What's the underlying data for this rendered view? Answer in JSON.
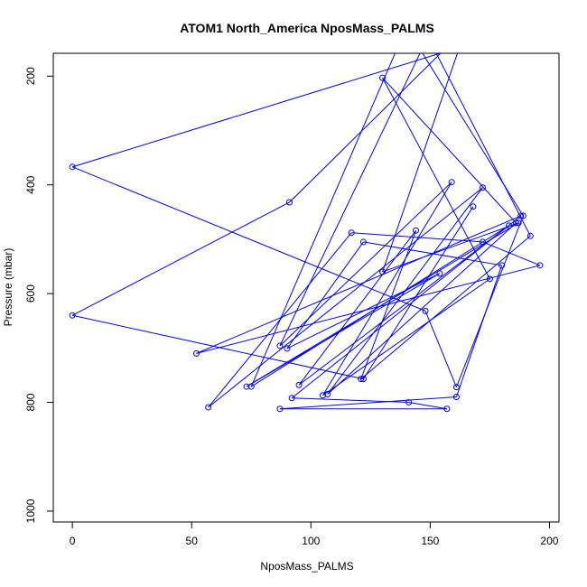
{
  "chart_data": {
    "type": "line",
    "title": "ATOM1 North_America NposMass_PALMS",
    "xlabel": "NposMass_PALMS",
    "ylabel": "Pressure (mbar)",
    "xlim": [
      -8,
      204
    ],
    "ylim": [
      1020,
      158
    ],
    "y_reversed": true,
    "x_ticks": [
      0,
      50,
      100,
      150,
      200
    ],
    "y_ticks": [
      200,
      400,
      600,
      800,
      1000
    ],
    "grid": false,
    "legend": "none",
    "series": [
      {
        "color": "#0000ff",
        "marker": "open-circle",
        "points": [
          [
            197,
            100
          ],
          [
            0,
            367
          ],
          [
            148,
            632
          ],
          [
            161,
            772
          ],
          [
            189,
            457
          ],
          [
            140,
            110
          ],
          [
            75,
            771
          ],
          [
            183,
            475
          ],
          [
            95,
            768
          ],
          [
            144,
            484
          ],
          [
            121,
            757
          ],
          [
            192,
            494
          ],
          [
            149,
            128
          ],
          [
            87,
            696
          ],
          [
            159,
            395
          ],
          [
            105,
            787
          ],
          [
            175,
            573
          ],
          [
            130,
            203
          ],
          [
            186,
            470
          ],
          [
            107,
            785
          ],
          [
            172,
            405
          ],
          [
            57,
            809
          ],
          [
            117,
            488
          ],
          [
            172,
            505
          ],
          [
            196,
            548
          ],
          [
            52,
            710
          ],
          [
            188,
            457
          ],
          [
            92,
            792
          ],
          [
            141,
            800
          ],
          [
            157,
            812
          ],
          [
            87,
            812
          ],
          [
            161,
            790
          ],
          [
            180,
            548
          ],
          [
            122,
            505
          ],
          [
            90,
            701
          ],
          [
            154,
            563
          ],
          [
            73,
            771
          ],
          [
            187,
            470
          ],
          [
            130,
            560
          ],
          [
            165,
            112
          ],
          [
            91,
            432
          ],
          [
            0,
            640
          ],
          [
            122,
            757
          ],
          [
            168,
            440
          ]
        ]
      }
    ]
  }
}
